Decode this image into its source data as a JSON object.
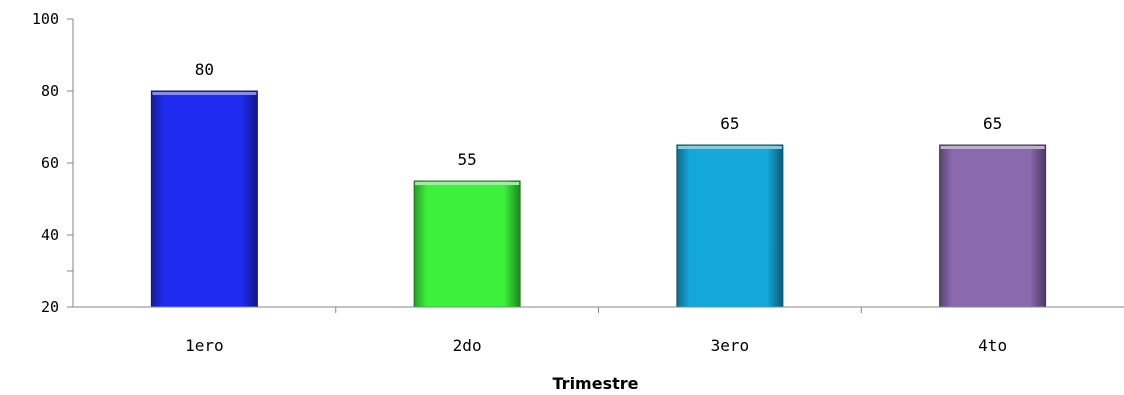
{
  "chart_data": {
    "type": "bar",
    "title": "",
    "xlabel": "Trimestre",
    "ylabel": "",
    "categories": [
      "1ero",
      "2do",
      "3ero",
      "4to"
    ],
    "values": [
      80,
      55,
      65,
      65
    ],
    "data_labels": [
      "80",
      "55",
      "65",
      "65"
    ],
    "ylim": [
      20,
      100
    ],
    "y_ticks": [
      {
        "label": "100",
        "value": 100
      },
      {
        "label": "80",
        "value": 80
      },
      {
        "label": "60",
        "value": 60
      },
      {
        "label": "40",
        "value": 40
      },
      {
        "label": "",
        "value": 30
      },
      {
        "label": "20",
        "value": 20
      }
    ],
    "bar_colors": [
      "#1f2cf0",
      "#3cf03c",
      "#14a8d8",
      "#8a6aae"
    ],
    "grid": false,
    "legend": "none"
  }
}
